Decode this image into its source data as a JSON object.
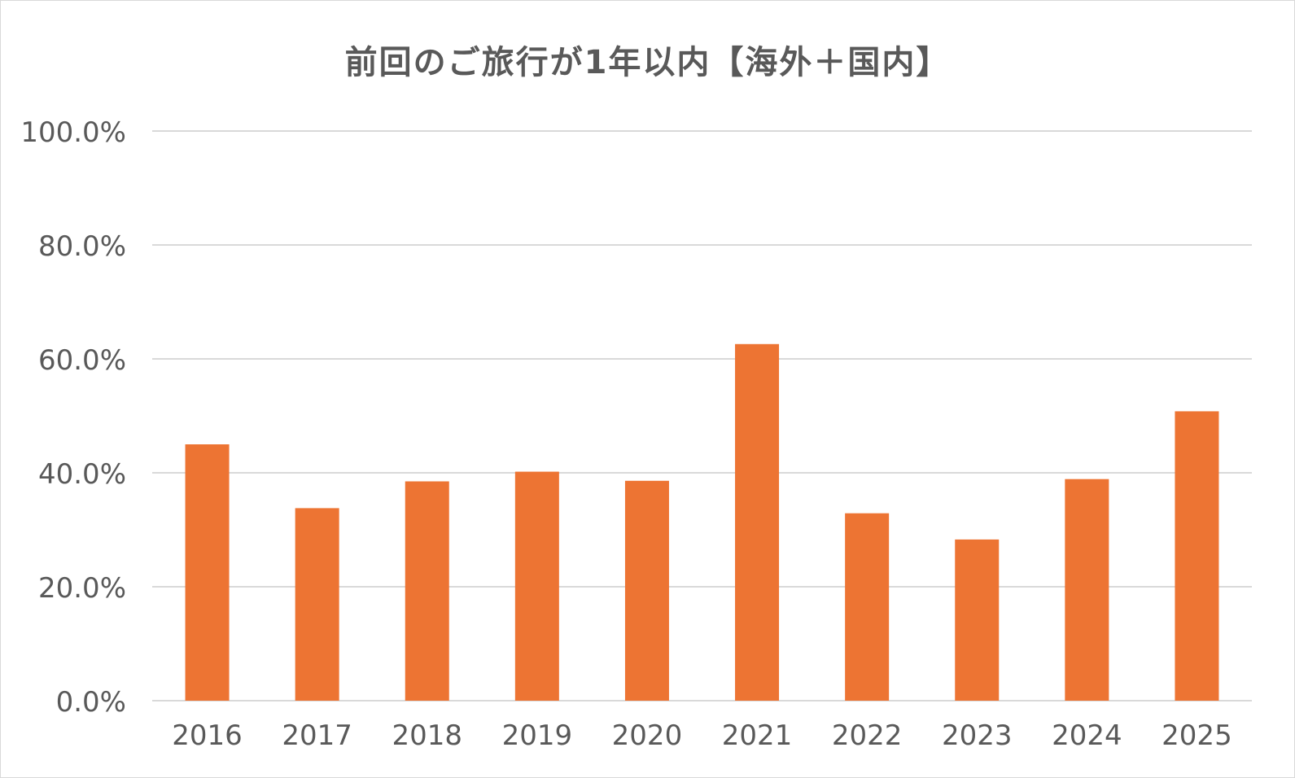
{
  "chart_data": {
    "type": "bar",
    "title": "前回のご旅行が1年以内【海外＋国内】",
    "categories": [
      "2016",
      "2017",
      "2018",
      "2019",
      "2020",
      "2021",
      "2022",
      "2023",
      "2024",
      "2025"
    ],
    "values": [
      45.0,
      33.8,
      38.5,
      40.2,
      38.6,
      62.6,
      32.9,
      28.3,
      38.9,
      50.8
    ],
    "y_tick_labels": [
      "0.0%",
      "20.0%",
      "40.0%",
      "60.0%",
      "80.0%",
      "100.0%"
    ],
    "y_tick_values": [
      0,
      20,
      40,
      60,
      80,
      100
    ],
    "ylim": [
      0,
      100
    ],
    "grid": true,
    "bar_color": "#ed7433",
    "grid_color": "#d9d9d9",
    "text_color": "#595959"
  }
}
